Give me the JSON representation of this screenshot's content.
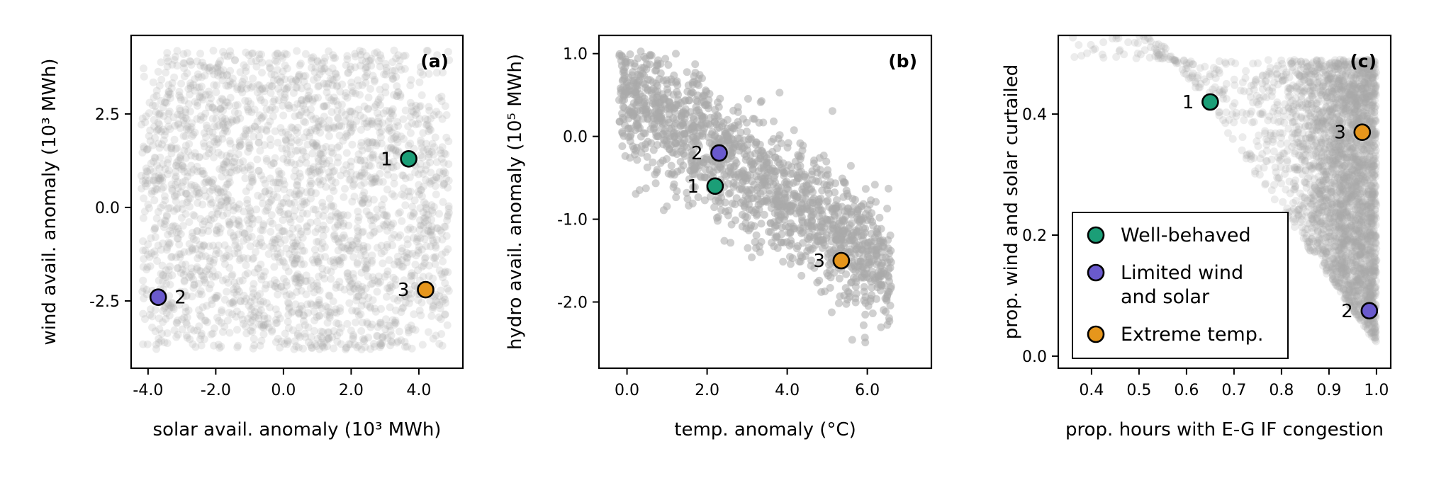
{
  "colors": {
    "well_behaved": "#1b9e77",
    "limited_wind_solar": "#6a5acd",
    "extreme_temp": "#e6961c",
    "cloud": "#a9a9a9"
  },
  "chart_data": [
    {
      "type": "scatter",
      "panel_label": "(a)",
      "xlabel": "solar avail. anomaly (10³ MWh)",
      "ylabel": "wind avail. anomaly (10³ MWh)",
      "xlim": [
        -4.5,
        5.3
      ],
      "ylim": [
        -4.3,
        4.6
      ],
      "xticks": [
        -4.0,
        -2.0,
        0.0,
        2.0,
        4.0
      ],
      "xtick_labels": [
        "-4.0",
        "-2.0",
        "0.0",
        "2.0",
        "4.0"
      ],
      "yticks": [
        -2.5,
        0.0,
        2.5
      ],
      "ytick_labels": [
        "-2.5",
        "0.0",
        "2.5"
      ],
      "cloud": {
        "description": "dense scenario cloud",
        "x_range": [
          -4.2,
          5.0
        ],
        "y_range": [
          -3.8,
          4.3
        ],
        "opacity": "light"
      },
      "highlights": [
        {
          "id": "1",
          "x": 3.7,
          "y": 1.3,
          "color_key": "well_behaved",
          "label_side": "left"
        },
        {
          "id": "2",
          "x": -3.7,
          "y": -2.4,
          "color_key": "limited_wind_solar",
          "label_side": "right"
        },
        {
          "id": "3",
          "x": 4.2,
          "y": -2.2,
          "color_key": "extreme_temp",
          "label_side": "left"
        }
      ]
    },
    {
      "type": "scatter",
      "panel_label": "(b)",
      "xlabel": "temp. anomaly (°C)",
      "ylabel": "hydro avail. anomaly (10⁵ MWh)",
      "xlim": [
        -0.7,
        7.6
      ],
      "ylim": [
        -2.8,
        1.22
      ],
      "xticks": [
        0.0,
        2.0,
        4.0,
        6.0
      ],
      "xtick_labels": [
        "0.0",
        "2.0",
        "4.0",
        "6.0"
      ],
      "yticks": [
        -2.0,
        -1.0,
        0.0,
        1.0
      ],
      "ytick_labels": [
        "-2.0",
        "-1.0",
        "0.0",
        "1.0"
      ],
      "cloud": {
        "description": "negative-trend cloud",
        "x_range": [
          -0.3,
          7.4
        ],
        "y_range": [
          -2.6,
          1.05
        ],
        "opacity": "medium"
      },
      "highlights": [
        {
          "id": "2",
          "x": 2.3,
          "y": -0.2,
          "color_key": "limited_wind_solar",
          "label_side": "left"
        },
        {
          "id": "1",
          "x": 2.2,
          "y": -0.6,
          "color_key": "well_behaved",
          "label_side": "left"
        },
        {
          "id": "3",
          "x": 5.35,
          "y": -1.5,
          "color_key": "extreme_temp",
          "label_side": "left"
        }
      ]
    },
    {
      "type": "scatter",
      "panel_label": "(c)",
      "xlabel": "prop. hours with E-G IF congestion",
      "ylabel": "prop. wind and solar curtailed",
      "xlim": [
        0.33,
        1.03
      ],
      "ylim": [
        -0.02,
        0.53
      ],
      "xticks": [
        0.4,
        0.5,
        0.6,
        0.7,
        0.8,
        0.9,
        1.0
      ],
      "xtick_labels": [
        "0.4",
        "0.5",
        "0.6",
        "0.7",
        "0.8",
        "0.9",
        "1.0"
      ],
      "yticks": [
        0.0,
        0.2,
        0.4
      ],
      "ytick_labels": [
        "0.0",
        "0.2",
        "0.4"
      ],
      "cloud": {
        "description": "cloud concentrated near x=0.9-1.0",
        "x_range": [
          0.35,
          1.0
        ],
        "y_range": [
          0.0,
          0.49
        ],
        "opacity": "light"
      },
      "highlights": [
        {
          "id": "1",
          "x": 0.65,
          "y": 0.42,
          "color_key": "well_behaved",
          "label_side": "left"
        },
        {
          "id": "3",
          "x": 0.97,
          "y": 0.37,
          "color_key": "extreme_temp",
          "label_side": "left"
        },
        {
          "id": "2",
          "x": 0.985,
          "y": 0.075,
          "color_key": "limited_wind_solar",
          "label_side": "left"
        }
      ],
      "legend": {
        "placement": "lower-left",
        "entries": [
          {
            "color_key": "well_behaved",
            "lines": [
              "Well-behaved"
            ]
          },
          {
            "color_key": "limited_wind_solar",
            "lines": [
              "Limited wind",
              "and solar"
            ]
          },
          {
            "color_key": "extreme_temp",
            "lines": [
              "Extreme temp."
            ]
          }
        ]
      }
    }
  ]
}
